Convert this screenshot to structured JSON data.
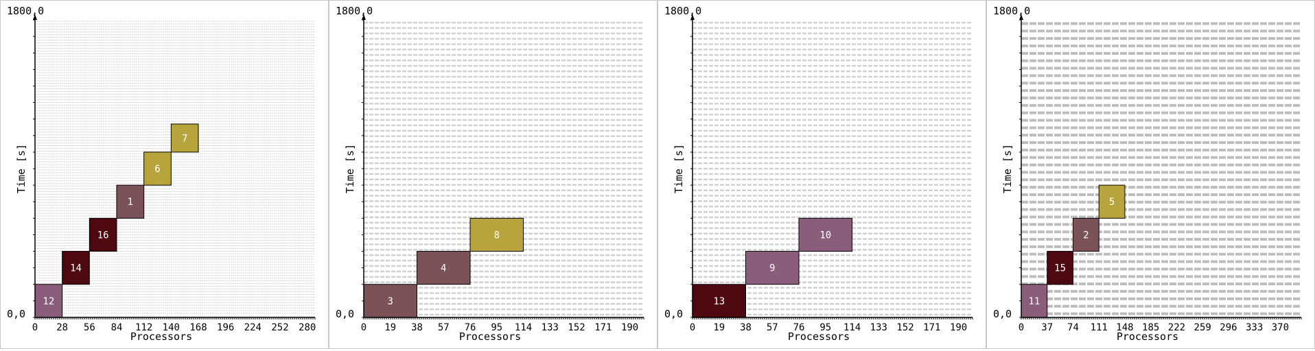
{
  "chart_data": [
    {
      "type": "gantt",
      "xlabel": "Processors",
      "ylabel": "Time [s]",
      "origin_label": "0,0",
      "top_label": "1800,0",
      "xlim": [
        0,
        288
      ],
      "ylim": [
        0,
        1800
      ],
      "xticks": [
        0,
        28,
        56,
        84,
        112,
        140,
        168,
        196,
        224,
        252,
        280
      ],
      "grid_rows": 110,
      "tasks": [
        {
          "label": "12",
          "x0": 0,
          "x1": 28,
          "t0": 0,
          "t1": 200,
          "color": "#8a5e7a"
        },
        {
          "label": "14",
          "x0": 28,
          "x1": 56,
          "t0": 200,
          "t1": 400,
          "color": "#4d0810"
        },
        {
          "label": "16",
          "x0": 56,
          "x1": 84,
          "t0": 400,
          "t1": 600,
          "color": "#4d0810"
        },
        {
          "label": "1",
          "x0": 84,
          "x1": 112,
          "t0": 600,
          "t1": 800,
          "color": "#7a5258"
        },
        {
          "label": "6",
          "x0": 112,
          "x1": 140,
          "t0": 800,
          "t1": 1000,
          "color": "#b8a43c"
        },
        {
          "label": "7",
          "x0": 140,
          "x1": 168,
          "t0": 1000,
          "t1": 1170,
          "color": "#b8a43c"
        }
      ]
    },
    {
      "type": "gantt",
      "xlabel": "Processors",
      "ylabel": "Time [s]",
      "origin_label": "0,0",
      "top_label": "1800,0",
      "xlim": [
        0,
        200
      ],
      "ylim": [
        0,
        1800
      ],
      "xticks": [
        0,
        19,
        38,
        57,
        76,
        95,
        114,
        133,
        152,
        171,
        190
      ],
      "grid_rows": 55,
      "tasks": [
        {
          "label": "3",
          "x0": 0,
          "x1": 38,
          "t0": 0,
          "t1": 200,
          "color": "#7a5258"
        },
        {
          "label": "4",
          "x0": 38,
          "x1": 76,
          "t0": 200,
          "t1": 400,
          "color": "#7a5258"
        },
        {
          "label": "8",
          "x0": 76,
          "x1": 114,
          "t0": 400,
          "t1": 600,
          "color": "#b8a43c"
        }
      ]
    },
    {
      "type": "gantt",
      "xlabel": "Processors",
      "ylabel": "Time [s]",
      "origin_label": "0,0",
      "top_label": "1800,0",
      "xlim": [
        0,
        200
      ],
      "ylim": [
        0,
        1800
      ],
      "xticks": [
        0,
        19,
        38,
        57,
        76,
        95,
        114,
        133,
        152,
        171,
        190
      ],
      "grid_rows": 55,
      "tasks": [
        {
          "label": "13",
          "x0": 0,
          "x1": 38,
          "t0": 0,
          "t1": 200,
          "color": "#4d0810"
        },
        {
          "label": "9",
          "x0": 38,
          "x1": 76,
          "t0": 200,
          "t1": 400,
          "color": "#8a5e7a"
        },
        {
          "label": "10",
          "x0": 76,
          "x1": 114,
          "t0": 400,
          "t1": 600,
          "color": "#8a5e7a"
        }
      ]
    },
    {
      "type": "gantt",
      "xlabel": "Processors",
      "ylabel": "Time [s]",
      "origin_label": "0,0",
      "top_label": "1800,0",
      "xlim": [
        0,
        400
      ],
      "ylim": [
        0,
        1800
      ],
      "xticks": [
        0,
        37,
        74,
        111,
        148,
        185,
        222,
        259,
        296,
        333,
        370
      ],
      "grid_rows": 40,
      "tasks": [
        {
          "label": "11",
          "x0": 0,
          "x1": 37,
          "t0": 0,
          "t1": 200,
          "color": "#8a5e7a"
        },
        {
          "label": "15",
          "x0": 37,
          "x1": 74,
          "t0": 200,
          "t1": 400,
          "color": "#4d0810"
        },
        {
          "label": "2",
          "x0": 74,
          "x1": 111,
          "t0": 400,
          "t1": 600,
          "color": "#7a5258"
        },
        {
          "label": "5",
          "x0": 111,
          "x1": 148,
          "t0": 600,
          "t1": 800,
          "color": "#b8a43c"
        }
      ]
    }
  ]
}
